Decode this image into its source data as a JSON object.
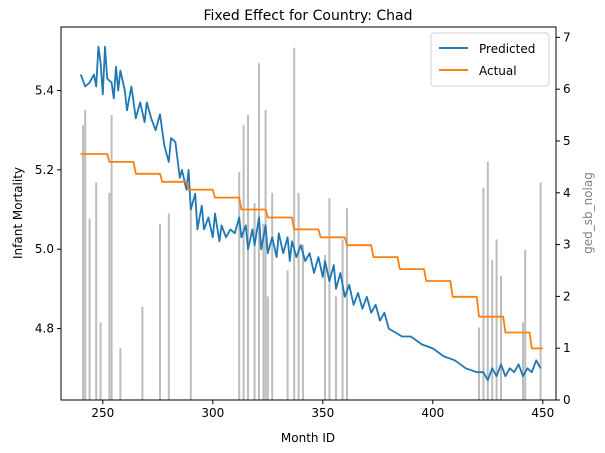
{
  "chart_data": {
    "type": "line",
    "title": "Fixed Effect for Country: Chad",
    "xlabel": "Month ID",
    "ylabel_left": "Infant Mortality",
    "ylabel_right": "ged_sb_nolag",
    "xlim": [
      231,
      456
    ],
    "ylim_left": [
      4.62,
      5.56
    ],
    "ylim_right": [
      0,
      7.2
    ],
    "x_ticks": [
      250,
      300,
      350,
      400,
      450
    ],
    "y_left_ticks": [
      4.8,
      5.0,
      5.2,
      5.4
    ],
    "y_right_ticks": [
      0,
      1,
      2,
      3,
      4,
      5,
      6,
      7
    ],
    "legend": {
      "position": "top-right",
      "entries": [
        "Predicted",
        "Actual"
      ]
    },
    "colors": {
      "predicted": "#1f77b4",
      "actual": "#ff7f0e",
      "bars": "#bdbdbd"
    },
    "grid": false,
    "series": [
      {
        "name": "Predicted",
        "axis": "left",
        "points": [
          [
            240,
            5.44
          ],
          [
            242,
            5.41
          ],
          [
            244,
            5.42
          ],
          [
            246,
            5.44
          ],
          [
            247,
            5.41
          ],
          [
            248,
            5.51
          ],
          [
            249,
            5.47
          ],
          [
            250,
            5.39
          ],
          [
            251,
            5.51
          ],
          [
            252,
            5.43
          ],
          [
            254,
            5.42
          ],
          [
            255,
            5.38
          ],
          [
            256,
            5.46
          ],
          [
            257,
            5.4
          ],
          [
            258,
            5.45
          ],
          [
            260,
            5.4
          ],
          [
            261,
            5.35
          ],
          [
            263,
            5.41
          ],
          [
            265,
            5.33
          ],
          [
            267,
            5.37
          ],
          [
            269,
            5.32
          ],
          [
            270,
            5.37
          ],
          [
            272,
            5.33
          ],
          [
            274,
            5.3
          ],
          [
            276,
            5.34
          ],
          [
            277,
            5.3
          ],
          [
            278,
            5.26
          ],
          [
            280,
            5.22
          ],
          [
            281,
            5.28
          ],
          [
            283,
            5.27
          ],
          [
            285,
            5.18
          ],
          [
            286,
            5.2
          ],
          [
            288,
            5.15
          ],
          [
            289,
            5.2
          ],
          [
            290,
            5.1
          ],
          [
            292,
            5.14
          ],
          [
            293,
            5.05
          ],
          [
            295,
            5.11
          ],
          [
            296,
            5.05
          ],
          [
            298,
            5.08
          ],
          [
            300,
            5.03
          ],
          [
            301,
            5.09
          ],
          [
            303,
            5.02
          ],
          [
            304,
            5.06
          ],
          [
            306,
            5.03
          ],
          [
            308,
            5.05
          ],
          [
            310,
            5.04
          ],
          [
            312,
            5.08
          ],
          [
            313,
            5.03
          ],
          [
            315,
            5.06
          ],
          [
            316,
            5.0
          ],
          [
            318,
            5.05
          ],
          [
            319,
            5.01
          ],
          [
            321,
            5.08
          ],
          [
            322,
            5.0
          ],
          [
            324,
            5.06
          ],
          [
            325,
            4.99
          ],
          [
            327,
            5.03
          ],
          [
            329,
            4.98
          ],
          [
            330,
            5.04
          ],
          [
            332,
            4.99
          ],
          [
            334,
            5.03
          ],
          [
            335,
            4.97
          ],
          [
            336,
            5.02
          ],
          [
            338,
            4.98
          ],
          [
            340,
            5.01
          ],
          [
            342,
            4.97
          ],
          [
            344,
            4.99
          ],
          [
            346,
            4.94
          ],
          [
            348,
            4.98
          ],
          [
            350,
            4.93
          ],
          [
            351,
            4.97
          ],
          [
            353,
            4.92
          ],
          [
            355,
            4.96
          ],
          [
            356,
            4.9
          ],
          [
            358,
            4.94
          ],
          [
            360,
            4.88
          ],
          [
            362,
            4.91
          ],
          [
            364,
            4.86
          ],
          [
            366,
            4.89
          ],
          [
            368,
            4.85
          ],
          [
            370,
            4.88
          ],
          [
            372,
            4.84
          ],
          [
            374,
            4.86
          ],
          [
            376,
            4.82
          ],
          [
            378,
            4.84
          ],
          [
            380,
            4.8
          ],
          [
            383,
            4.79
          ],
          [
            386,
            4.78
          ],
          [
            390,
            4.78
          ],
          [
            395,
            4.76
          ],
          [
            400,
            4.75
          ],
          [
            405,
            4.73
          ],
          [
            410,
            4.72
          ],
          [
            415,
            4.7
          ],
          [
            420,
            4.69
          ],
          [
            423,
            4.69
          ],
          [
            425,
            4.67
          ],
          [
            427,
            4.7
          ],
          [
            429,
            4.68
          ],
          [
            431,
            4.71
          ],
          [
            433,
            4.68
          ],
          [
            435,
            4.7
          ],
          [
            437,
            4.69
          ],
          [
            439,
            4.71
          ],
          [
            441,
            4.68
          ],
          [
            443,
            4.7
          ],
          [
            445,
            4.69
          ],
          [
            447,
            4.72
          ],
          [
            449,
            4.7
          ]
        ]
      },
      {
        "name": "Actual",
        "axis": "left",
        "points": [
          [
            240,
            5.24
          ],
          [
            252,
            5.24
          ],
          [
            253,
            5.22
          ],
          [
            264,
            5.22
          ],
          [
            265,
            5.19
          ],
          [
            276,
            5.19
          ],
          [
            277,
            5.17
          ],
          [
            288,
            5.17
          ],
          [
            289,
            5.15
          ],
          [
            300,
            5.15
          ],
          [
            301,
            5.13
          ],
          [
            312,
            5.13
          ],
          [
            313,
            5.1
          ],
          [
            324,
            5.1
          ],
          [
            325,
            5.08
          ],
          [
            336,
            5.08
          ],
          [
            337,
            5.05
          ],
          [
            348,
            5.05
          ],
          [
            349,
            5.03
          ],
          [
            360,
            5.03
          ],
          [
            361,
            5.01
          ],
          [
            372,
            5.01
          ],
          [
            373,
            4.98
          ],
          [
            384,
            4.98
          ],
          [
            385,
            4.95
          ],
          [
            396,
            4.95
          ],
          [
            397,
            4.92
          ],
          [
            408,
            4.92
          ],
          [
            409,
            4.88
          ],
          [
            420,
            4.88
          ],
          [
            421,
            4.83
          ],
          [
            432,
            4.83
          ],
          [
            433,
            4.79
          ],
          [
            444,
            4.79
          ],
          [
            445,
            4.75
          ],
          [
            450,
            4.75
          ]
        ]
      },
      {
        "name": "ged_sb_nolag",
        "axis": "right",
        "type": "bar",
        "points": [
          [
            241,
            5.3
          ],
          [
            242,
            5.6
          ],
          [
            244,
            3.5
          ],
          [
            247,
            4.2
          ],
          [
            249,
            1.5
          ],
          [
            253,
            4.0
          ],
          [
            254,
            5.5
          ],
          [
            258,
            1.0
          ],
          [
            268,
            1.8
          ],
          [
            276,
            3.4
          ],
          [
            280,
            3.6
          ],
          [
            290,
            3.7
          ],
          [
            312,
            4.4
          ],
          [
            314,
            5.3
          ],
          [
            316,
            5.5
          ],
          [
            319,
            3.8
          ],
          [
            321,
            6.5
          ],
          [
            323,
            3.4
          ],
          [
            324,
            5.6
          ],
          [
            325,
            2.0
          ],
          [
            327,
            4.0
          ],
          [
            334,
            2.5
          ],
          [
            337,
            6.8
          ],
          [
            339,
            4.0
          ],
          [
            341,
            3.0
          ],
          [
            351,
            2.8
          ],
          [
            353,
            3.9
          ],
          [
            356,
            2.0
          ],
          [
            359,
            3.1
          ],
          [
            361,
            3.7
          ],
          [
            421,
            1.4
          ],
          [
            423,
            4.1
          ],
          [
            425,
            4.6
          ],
          [
            427,
            2.7
          ],
          [
            429,
            3.1
          ],
          [
            431,
            2.4
          ],
          [
            441,
            1.5
          ],
          [
            442,
            2.9
          ],
          [
            449,
            4.2
          ]
        ]
      }
    ]
  }
}
